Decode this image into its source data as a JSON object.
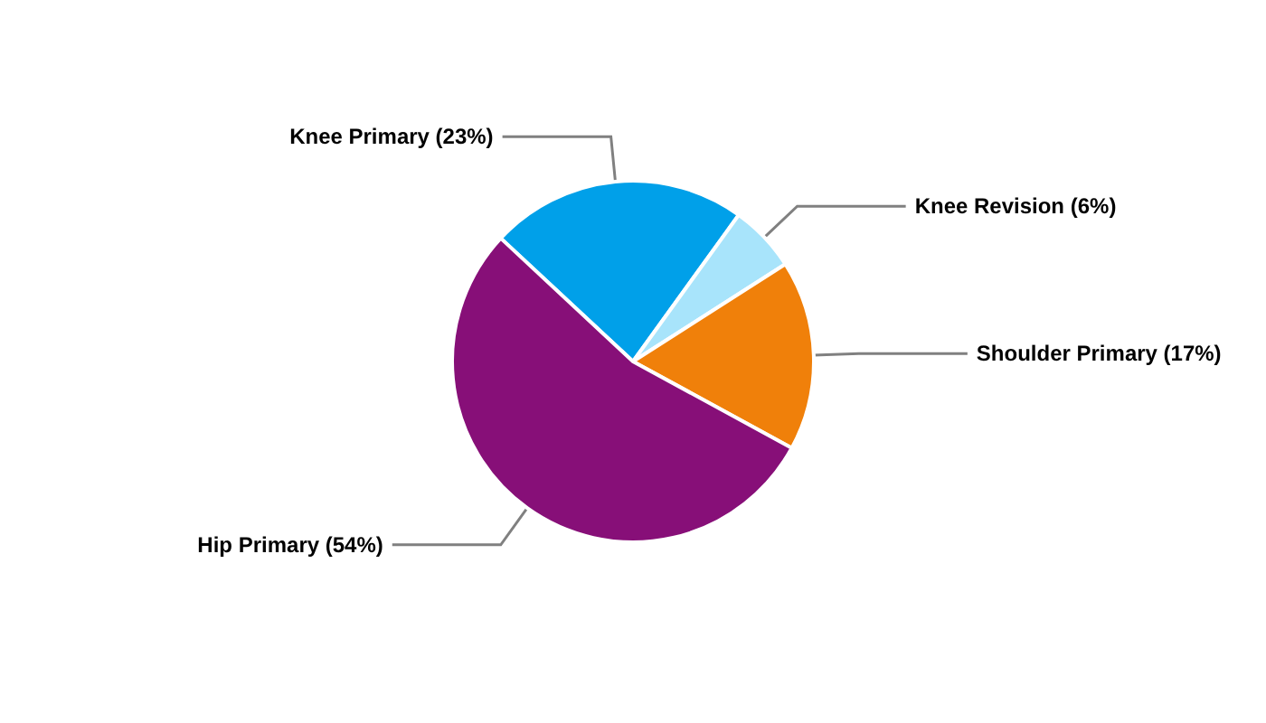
{
  "chart_data": {
    "type": "pie",
    "categories": [
      "Knee Primary",
      "Knee Revision",
      "Shoulder Primary",
      "Hip Primary"
    ],
    "values": [
      23,
      6,
      17,
      54
    ],
    "value_labels": [
      "(23%)",
      "(6%)",
      "(17%)",
      "(54%)"
    ],
    "colors": [
      "#00a0e9",
      "#a8e4fb",
      "#f0800a",
      "#870f78"
    ],
    "legend": false
  }
}
